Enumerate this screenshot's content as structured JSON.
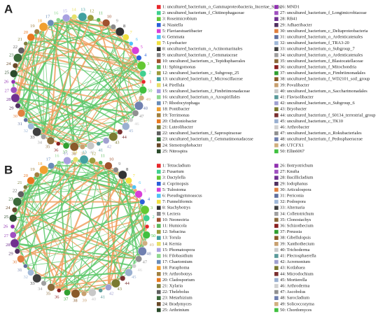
{
  "colors": [
    "#e8262a",
    "#3fd08f",
    "#64c832",
    "#2b5fd9",
    "#d83fd8",
    "#4fc3f7",
    "#f0e040",
    "#333333",
    "#888888",
    "#a0522d",
    "#5cb85c",
    "#9c9c3c",
    "#41a0a0",
    "#e8e06a",
    "#a8a0e0",
    "#90d890",
    "#6a8cb8",
    "#f0a030",
    "#a08040",
    "#e87820",
    "#808040",
    "#606060",
    "#3a6a3a",
    "#6a4a2a",
    "#2a4a2a",
    "#9030b0",
    "#a050c0",
    "#703090",
    "#503060",
    "#e08040",
    "#6070a0",
    "#a0b8d8",
    "#404040",
    "#a0a0a0",
    "#8a6a3a",
    "#8a2020",
    "#30a030",
    "#8a5a2a",
    "#c8a070",
    "#c8c8c8",
    "#5a9a9a",
    "#a0a0d0",
    "#7a7a30",
    "#7a3030",
    "#9ab0d0",
    "#d0d0d0",
    "#909090",
    "#7080b0",
    "#d0b080",
    "#40c040"
  ],
  "positive_edge_color": "#5cc86a",
  "negative_edge_color": "#f0a060",
  "panels": [
    {
      "label": "A",
      "legend": [
        "1: uncultured_bacterium_o_Gammaproteobacteria_Incertae_Sedis",
        "2: uncultured_bacterium_f_Chitinophagaceae",
        "3: Roseimicrobium",
        "4: Niastella",
        "5: Flaviaestuariibacter",
        "6: Gemmata",
        "7: Lysobacter",
        "8: uncultured_bacterium_o_Actinomarinales",
        "9: uncultured_bacterium_f_Gemmataceae",
        "10: uncultured_bacterium_o_Tepidisphaerales",
        "11: Sphingomonas",
        "12: uncultured_bacterium_c_Subgroup_25",
        "13: uncultured_bacterium_f_Microscillaceae",
        "14: Pirellula",
        "15: uncultured_bacterium_f_Fimbriimonadaceae",
        "16: uncultured_bacterium_o_Azospirillales",
        "17: Rhodocytophaga",
        "18: Pontibacter",
        "19: Terrimonas",
        "20: Chthoniobacter",
        "21: Luteolibacter",
        "22: uncultured_bacterium_f_Saprospiraceae",
        "23: uncultured_bacterium_f_Gemmatimonadaceae",
        "24: Stenotrophobacter",
        "25: Nitrospira",
        "26: MND1",
        "27: uncultured_bacterium_f_Longimicrobiaceae",
        "28: RB41",
        "29: Adhaeribacter",
        "30: uncultured_bacterium_c_Deltaproteobacteria",
        "31: uncultured_bacterium_o_Ardenticatenales",
        "32: uncultured_bacterium_f_TRA3-20",
        "33: uncultured_bacterium_o_Subgroup_7",
        "34: uncultured_bacterium_o_Ardenticatenales",
        "35: uncultured_bacterium_f_Blastocatellaceae",
        "36: uncultured_bacterium_f_Mitochondria",
        "37: uncultured_bacterium_o_Fimbriimonadales",
        "38: uncultured_bacterium_f_WD2101_soil_group",
        "39: Povalibacter",
        "40: uncultured_bacterium_o_Saccharimonadales",
        "41: Flavisolibacter",
        "42: uncultured_bacterium_o_Subgroup_6",
        "43: Bryobacter",
        "44: uncultured_bacterium_f_S0134_terrestrial_group",
        "45: uncultured_bacterium_c_TK10",
        "46: Arthrobacter",
        "47: uncultured_bacterium_o_Rokubacteriales",
        "48: uncultured_bacterium_f_Pedosphaeraceae",
        "49: UTCFX1",
        "50: Ellin6067"
      ]
    },
    {
      "label": "B",
      "legend": [
        "1: Tetracladium",
        "2: Fusarium",
        "3: Dactylella",
        "4: Coprinopsis",
        "5: Tulostoma",
        "6: Pseudogymnoascus",
        "7: Funneliformis",
        "8: Stachybotrys",
        "9: Lectera",
        "10: Neonectria",
        "11: Humicola",
        "12: Sebacina",
        "13: Torula",
        "14: Kernia",
        "15: Phomatospora",
        "16: Filobasidium",
        "17: Chaetomium",
        "18: Paraphoma",
        "19: Arthrobotrys",
        "20: Cladosporium",
        "21: Xylaria",
        "22: Thelebolus",
        "23: Metarhizium",
        "24: Bradymyces",
        "25: Arthrinium",
        "26: Botryotrichum",
        "27: Knufia",
        "28: Bacillicladium",
        "29: Iodophanus",
        "30: Articulospora",
        "31: Periconia",
        "32: Podospora",
        "33: Alternaria",
        "34: Colletotrichum",
        "35: Clonostachys",
        "36: Schizothecium",
        "37: Preussia",
        "38: Gibellulopsis",
        "39: Xanthothecium",
        "40: Trichoderma",
        "41: Plectosphaerella",
        "42: Acremonium",
        "43: Kotlabaea",
        "44: Microdochium",
        "45: Mortierella",
        "46: Arthroderma",
        "47: Ascobolus",
        "48: Sarocladium",
        "49: Solicoccozyma",
        "50: Chordomyces"
      ]
    }
  ],
  "node_numbers": [
    1,
    2,
    3,
    4,
    5,
    6,
    7,
    8,
    9,
    10,
    11,
    12,
    13,
    14,
    15,
    16,
    17,
    18,
    19,
    20,
    21,
    22,
    23,
    24,
    25,
    26,
    27,
    28,
    29,
    30,
    31,
    32,
    33,
    34,
    35,
    36,
    37,
    38,
    39,
    40,
    41,
    42,
    43,
    44,
    45,
    46,
    47,
    48,
    49,
    50
  ]
}
